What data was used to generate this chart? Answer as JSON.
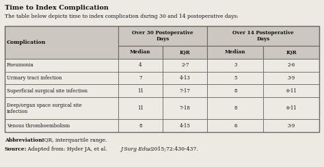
{
  "title": "Time to Index Complication",
  "subtitle": "The table below depicts time to index complication during 30 and 14 postoperative days:",
  "col_headers_top": [
    "Over 30 Postoperative\nDays",
    "Over 14 Postoperative\nDays"
  ],
  "col_headers_sub": [
    "Median",
    "IQR",
    "Median",
    "IQR"
  ],
  "col_header_left": "Complication",
  "rows": [
    [
      "Pneumonia",
      "4",
      "2-7",
      "3",
      "2-6"
    ],
    [
      "Urinary tract infection",
      "7",
      "4-13",
      "5",
      "3-9"
    ],
    [
      "Superficial surgical site infection",
      "11",
      "7-17",
      "8",
      "6-11"
    ],
    [
      "Deep/organ space surgical site\ninfection",
      "11",
      "7-18",
      "8",
      "6-11"
    ],
    [
      "Venous thromboembolism",
      "8",
      "4-15",
      "6",
      "3-9"
    ]
  ],
  "abbreviation_bold": "Abbreviation:",
  "abbreviation_normal": " IQR, interquartile range.",
  "source_bold": "Source:",
  "source_normal": " Adapted from: Hyder JA, et al. ",
  "source_italic": "J Surg Educ",
  "source_end": ". 2015;72:430-437.",
  "bg_color": "#ede9e3",
  "header_bg": "#ccc8bf",
  "table_border_color": "#666666",
  "text_color": "#111111"
}
